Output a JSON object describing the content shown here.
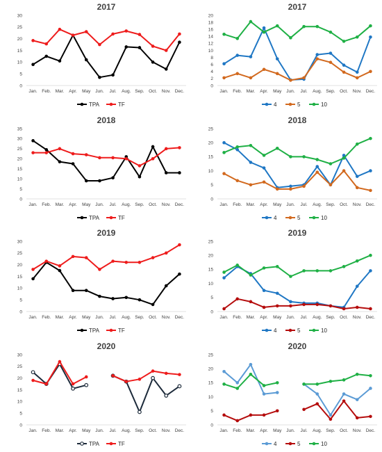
{
  "months": [
    "Jan.",
    "Feb.",
    "Mar.",
    "Apr.",
    "May",
    "Jun.",
    "Jul.",
    "Aug.",
    "Sep.",
    "Oct.",
    "Nov.",
    "Dec."
  ],
  "chart_data": [
    {
      "type": "line",
      "title": "2017",
      "ylim": [
        0,
        30
      ],
      "yticks": [
        0,
        5,
        10,
        15,
        20,
        25,
        30
      ],
      "grid": false,
      "legend": "bottom",
      "series": [
        {
          "name": "TPA",
          "color": "#000000",
          "values": [
            9,
            12.5,
            10.5,
            21.5,
            11,
            3.5,
            4.5,
            16.5,
            16.2,
            10,
            7,
            18.5
          ]
        },
        {
          "name": "TF",
          "color": "#ee1c1c",
          "values": [
            19.2,
            17.8,
            24,
            21.5,
            23,
            17.5,
            22,
            23.3,
            21.8,
            16.8,
            15,
            22
          ]
        }
      ]
    },
    {
      "type": "line",
      "title": "2017",
      "ylim": [
        0,
        20
      ],
      "yticks": [
        0,
        2,
        4,
        6,
        8,
        10,
        12,
        14,
        16,
        18,
        20
      ],
      "grid": false,
      "legend": "bottom",
      "series": [
        {
          "name": "4",
          "color": "#1f77c4",
          "values": [
            6.2,
            8.6,
            8.2,
            16.4,
            7.6,
            1.6,
            1.8,
            8.8,
            9.2,
            5.8,
            3.8,
            13.8
          ]
        },
        {
          "name": "5",
          "color": "#d2691e",
          "values": [
            2.2,
            3.4,
            2.2,
            4.6,
            3.4,
            1.5,
            2.2,
            7.6,
            6.6,
            3.8,
            2.2,
            4
          ]
        },
        {
          "name": "10",
          "color": "#1fb045",
          "values": [
            14.6,
            13.4,
            18.2,
            15.2,
            17,
            13.6,
            16.8,
            16.8,
            15.2,
            12.6,
            13.8,
            17
          ]
        }
      ]
    },
    {
      "type": "line",
      "title": "2018",
      "ylim": [
        0,
        35
      ],
      "yticks": [
        0,
        5,
        10,
        15,
        20,
        25,
        30,
        35
      ],
      "grid": false,
      "legend": "bottom",
      "series": [
        {
          "name": "TPA",
          "color": "#000000",
          "values": [
            29,
            24.5,
            18.5,
            17.5,
            9,
            9,
            10.5,
            21,
            11,
            26,
            13,
            13
          ]
        },
        {
          "name": "TF",
          "color": "#ee1c1c",
          "values": [
            23,
            23,
            25,
            22.5,
            22,
            20.5,
            20.5,
            20,
            16.5,
            20,
            25,
            25.5
          ]
        }
      ]
    },
    {
      "type": "line",
      "title": "2018",
      "ylim": [
        0,
        25
      ],
      "yticks": [
        0,
        5,
        10,
        15,
        20,
        25
      ],
      "grid": false,
      "legend": "bottom",
      "series": [
        {
          "name": "4",
          "color": "#1f77c4",
          "values": [
            20,
            17.5,
            13,
            11,
            4,
            4.5,
            5,
            11.5,
            5,
            15.5,
            8,
            10
          ]
        },
        {
          "name": "5",
          "color": "#d2691e",
          "values": [
            9,
            6.5,
            5,
            6,
            3.5,
            3.5,
            4.5,
            9.5,
            5,
            10,
            4,
            3
          ]
        },
        {
          "name": "10",
          "color": "#1fb045",
          "values": [
            16.5,
            18.5,
            19,
            15.5,
            18,
            15,
            15,
            14,
            12.5,
            14.5,
            19.5,
            21.5
          ]
        }
      ]
    },
    {
      "type": "line",
      "title": "2019",
      "ylim": [
        0,
        30
      ],
      "yticks": [
        0,
        5,
        10,
        15,
        20,
        25,
        30
      ],
      "grid": false,
      "legend": "bottom",
      "series": [
        {
          "name": "TPA",
          "color": "#000000",
          "values": [
            14,
            21,
            17.5,
            9,
            9,
            6.5,
            5.5,
            6,
            5,
            3,
            11,
            16
          ]
        },
        {
          "name": "TF",
          "color": "#ee1c1c",
          "values": [
            18,
            21.5,
            19.5,
            23.5,
            23,
            18,
            21.5,
            21,
            21,
            23,
            25,
            28.5
          ]
        }
      ]
    },
    {
      "type": "line",
      "title": "2019",
      "ylim": [
        0,
        25
      ],
      "yticks": [
        0,
        5,
        10,
        15,
        20,
        25
      ],
      "grid": false,
      "legend": "bottom",
      "series": [
        {
          "name": "4",
          "color": "#1f77c4",
          "values": [
            12,
            16,
            13.5,
            7.5,
            6.5,
            3.5,
            3,
            3,
            2,
            1.5,
            9,
            14.5
          ]
        },
        {
          "name": "5",
          "color": "#b50d0d",
          "values": [
            1,
            4.5,
            3.5,
            1.5,
            2,
            2,
            2.5,
            2.5,
            2,
            1,
            1.5,
            1
          ]
        },
        {
          "name": "10",
          "color": "#1fb045",
          "values": [
            14,
            16.5,
            13,
            15.5,
            16,
            12.5,
            14.5,
            14.5,
            14.5,
            16,
            18,
            20
          ]
        }
      ]
    },
    {
      "type": "line",
      "title": "2020",
      "ylim": [
        0,
        30
      ],
      "yticks": [
        0,
        5,
        10,
        15,
        20,
        25,
        30
      ],
      "grid": false,
      "legend": "bottom",
      "series": [
        {
          "name": "TPA",
          "color": "#1c2a3a",
          "hollow": true,
          "values": [
            22.5,
            17.5,
            26,
            15.5,
            17,
            null,
            21,
            18.5,
            5.5,
            20,
            12.5,
            16.5
          ]
        },
        {
          "name": "TF",
          "color": "#ee1c1c",
          "values": [
            19,
            17.5,
            27,
            17.5,
            20.5,
            null,
            21,
            18.5,
            19.5,
            23,
            22,
            21.5
          ]
        }
      ]
    },
    {
      "type": "line",
      "title": "2020",
      "ylim": [
        0,
        25
      ],
      "yticks": [
        0,
        5,
        10,
        15,
        20,
        25
      ],
      "grid": false,
      "legend": "bottom",
      "series": [
        {
          "name": "4",
          "color": "#5b9bd5",
          "values": [
            19,
            15,
            21.5,
            11,
            11.5,
            null,
            14.5,
            11,
            3.5,
            11,
            9,
            13
          ]
        },
        {
          "name": "5",
          "color": "#b50d0d",
          "values": [
            3.5,
            1.5,
            3.5,
            3.5,
            5,
            null,
            5.5,
            7.5,
            2,
            8.5,
            2.5,
            3
          ]
        },
        {
          "name": "10",
          "color": "#1fb045",
          "values": [
            14.5,
            13,
            18,
            14,
            15,
            null,
            14.5,
            14.5,
            15.5,
            16,
            18,
            17.5
          ]
        }
      ]
    }
  ]
}
